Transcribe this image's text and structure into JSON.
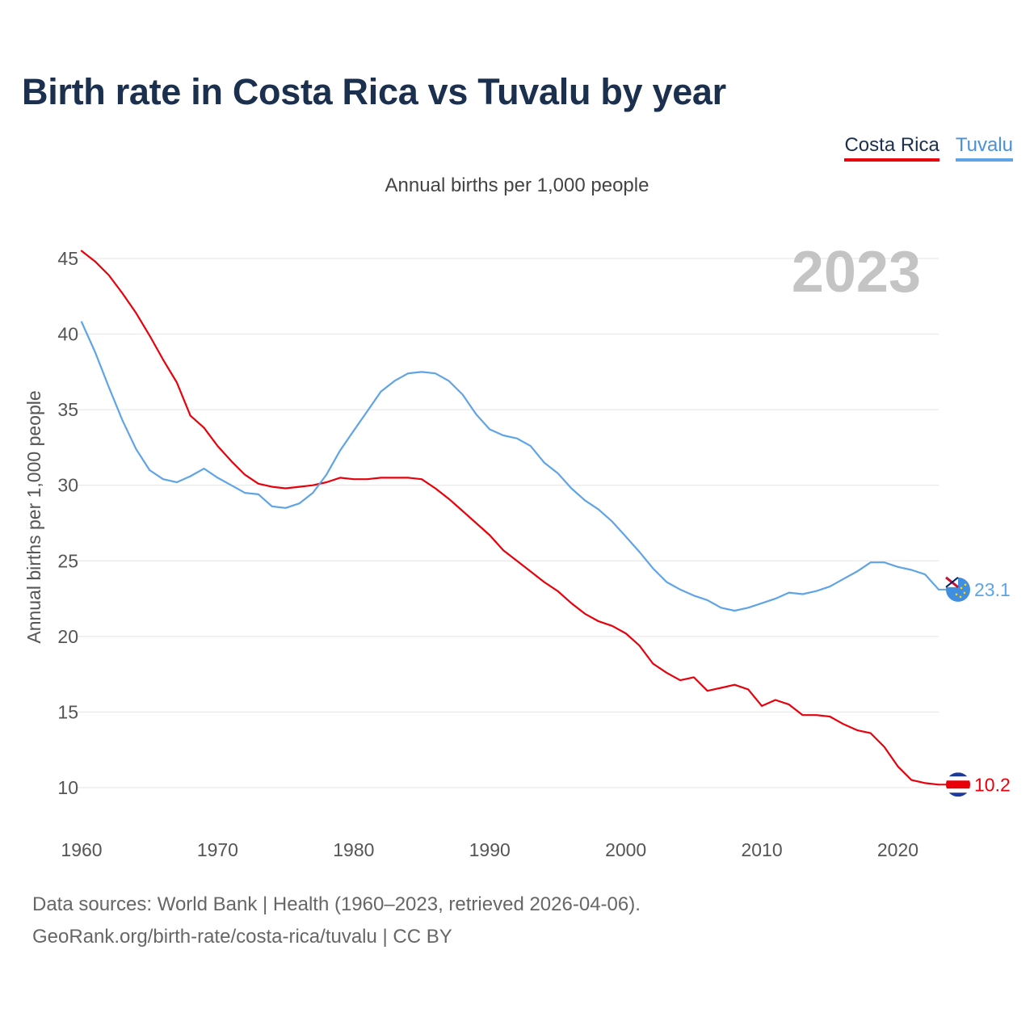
{
  "title": "Birth rate in Costa Rica vs Tuvalu by year",
  "legend": {
    "costa_rica": "Costa Rica",
    "tuvalu": "Tuvalu"
  },
  "subtitle": "Annual births per 1,000 people",
  "colors": {
    "costa_rica": "#e8000b",
    "tuvalu": "#5fa4e6",
    "title": "#1b2f4e",
    "year": "#c4c4c4"
  },
  "chart_data": {
    "type": "line",
    "ylabel": "Annual births per 1,000 people",
    "year_label": "2023",
    "xlim": [
      1960,
      2023
    ],
    "ylim": [
      8,
      47
    ],
    "yticks": [
      10,
      15,
      20,
      25,
      30,
      35,
      40,
      45
    ],
    "xticks": [
      1960,
      1970,
      1980,
      1990,
      2000,
      2010,
      2020
    ],
    "x": [
      1960,
      1961,
      1962,
      1963,
      1964,
      1965,
      1966,
      1967,
      1968,
      1969,
      1970,
      1971,
      1972,
      1973,
      1974,
      1975,
      1976,
      1977,
      1978,
      1979,
      1980,
      1981,
      1982,
      1983,
      1984,
      1985,
      1986,
      1987,
      1988,
      1989,
      1990,
      1991,
      1992,
      1993,
      1994,
      1995,
      1996,
      1997,
      1998,
      1999,
      2000,
      2001,
      2002,
      2003,
      2004,
      2005,
      2006,
      2007,
      2008,
      2009,
      2010,
      2011,
      2012,
      2013,
      2014,
      2015,
      2016,
      2017,
      2018,
      2019,
      2020,
      2021,
      2022,
      2023
    ],
    "series": [
      {
        "name": "Costa Rica",
        "end_label": "10.2",
        "values": [
          45.5,
          44.8,
          43.9,
          42.7,
          41.4,
          39.9,
          38.3,
          36.8,
          34.6,
          33.8,
          32.6,
          31.6,
          30.7,
          30.1,
          29.9,
          29.8,
          29.9,
          30.0,
          30.2,
          30.5,
          30.4,
          30.4,
          30.5,
          30.5,
          30.5,
          30.4,
          29.8,
          29.1,
          28.3,
          27.5,
          26.7,
          25.7,
          25.0,
          24.3,
          23.6,
          23.0,
          22.2,
          21.5,
          21.0,
          20.7,
          20.2,
          19.4,
          18.2,
          17.6,
          17.1,
          17.3,
          16.4,
          16.6,
          16.8,
          16.5,
          15.4,
          15.8,
          15.5,
          14.8,
          14.8,
          14.7,
          14.2,
          13.8,
          13.6,
          12.7,
          11.4,
          10.5,
          10.3,
          10.2
        ]
      },
      {
        "name": "Tuvalu",
        "end_label": "23.1",
        "values": [
          40.8,
          38.8,
          36.5,
          34.3,
          32.4,
          31.0,
          30.4,
          30.2,
          30.6,
          31.1,
          30.5,
          30.0,
          29.5,
          29.4,
          28.6,
          28.5,
          28.8,
          29.5,
          30.7,
          32.3,
          33.6,
          34.9,
          36.2,
          36.9,
          37.4,
          37.5,
          37.4,
          36.9,
          36.0,
          34.7,
          33.7,
          33.3,
          33.1,
          32.6,
          31.5,
          30.8,
          29.8,
          29.0,
          28.4,
          27.6,
          26.6,
          25.6,
          24.5,
          23.6,
          23.1,
          22.7,
          22.4,
          21.9,
          21.7,
          21.9,
          22.2,
          22.5,
          22.9,
          22.8,
          23.0,
          23.3,
          23.8,
          24.3,
          24.9,
          24.9,
          24.6,
          24.4,
          24.1,
          23.1
        ]
      }
    ]
  },
  "source": {
    "line1": "Data sources: World Bank | Health (1960–2023, retrieved 2026-04-06).",
    "line2": "GeoRank.org/birth-rate/costa-rica/tuvalu | CC BY"
  }
}
